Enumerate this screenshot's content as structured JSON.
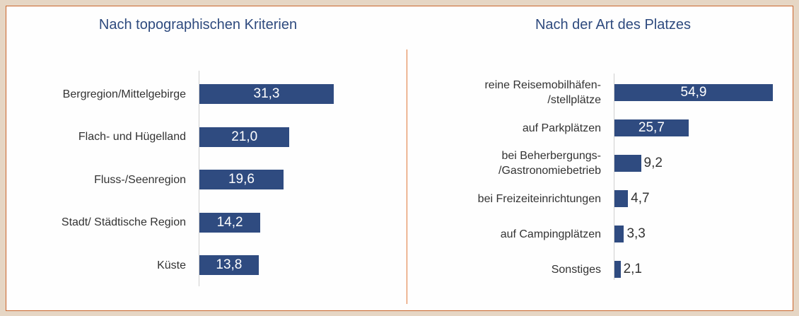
{
  "chart_data": [
    {
      "type": "bar",
      "orientation": "horizontal",
      "title": "Nach topographischen Kriterien",
      "categories": [
        "Bergregion/Mittelgebirge",
        "Flach- und Hügelland",
        "Fluss-/Seenregion",
        "Stadt/ Städtische Region",
        "Küste"
      ],
      "values": [
        31.3,
        21.0,
        19.6,
        14.2,
        13.8
      ],
      "value_labels": [
        "31,3",
        "21,0",
        "19,6",
        "14,2",
        "13,8"
      ],
      "color": "#2f4b80"
    },
    {
      "type": "bar",
      "orientation": "horizontal",
      "title": "Nach der Art des Platzes",
      "categories": [
        "reine Reisemobilhäfen-\n/stellplätze",
        "auf Parkplätzen",
        "bei Beherbergungs-\n/Gastronomiebetrieb",
        "bei Freizeiteinrichtungen",
        "auf Campingplätzen",
        "Sonstiges"
      ],
      "values": [
        54.9,
        25.7,
        9.2,
        4.7,
        3.3,
        2.1
      ],
      "value_labels": [
        "54,9",
        "25,7",
        "9,2",
        "4,7",
        "3,3",
        "2,1"
      ],
      "color": "#2f4b80"
    }
  ]
}
